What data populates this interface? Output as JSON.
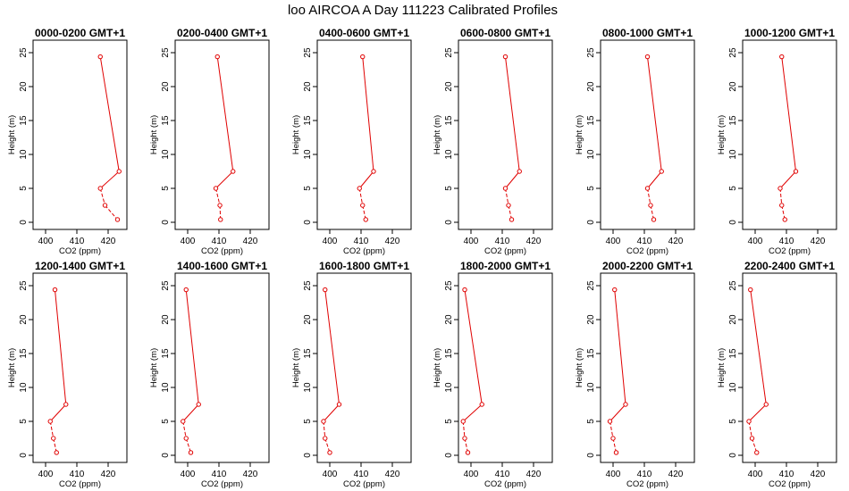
{
  "figure": {
    "title": "loo AIRCOA A  Day 111223  Calibrated Profiles"
  },
  "colors": {
    "series": "#e00000",
    "axes": "#000000",
    "background": "#ffffff"
  },
  "chart_data": [
    {
      "type": "line",
      "title": "0000-0200 GMT+1",
      "xlabel": "CO2 (ppm)",
      "ylabel": "Height (m)",
      "xlim": [
        396,
        426
      ],
      "ylim": [
        0,
        25
      ],
      "xticks": [
        400,
        410,
        420
      ],
      "yticks": [
        0,
        5,
        10,
        15,
        20,
        25
      ],
      "grid": false,
      "points": [
        {
          "x": 417.5,
          "y": 24.4
        },
        {
          "x": 423.5,
          "y": 7.5
        },
        {
          "x": 417.5,
          "y": 5.0
        },
        {
          "x": 419.0,
          "y": 2.5
        },
        {
          "x": 423.0,
          "y": 0.4
        }
      ]
    },
    {
      "type": "line",
      "title": "0200-0400 GMT+1",
      "xlabel": "CO2 (ppm)",
      "ylabel": "Height (m)",
      "xlim": [
        396,
        426
      ],
      "ylim": [
        0,
        25
      ],
      "xticks": [
        400,
        410,
        420
      ],
      "yticks": [
        0,
        5,
        10,
        15,
        20,
        25
      ],
      "grid": false,
      "points": [
        {
          "x": 409.5,
          "y": 24.4
        },
        {
          "x": 414.5,
          "y": 7.5
        },
        {
          "x": 409.0,
          "y": 5.0
        },
        {
          "x": 410.3,
          "y": 2.5
        },
        {
          "x": 410.5,
          "y": 0.4
        }
      ]
    },
    {
      "type": "line",
      "title": "0400-0600 GMT+1",
      "xlabel": "CO2 (ppm)",
      "ylabel": "Height (m)",
      "xlim": [
        396,
        426
      ],
      "ylim": [
        0,
        25
      ],
      "xticks": [
        400,
        410,
        420
      ],
      "yticks": [
        0,
        5,
        10,
        15,
        20,
        25
      ],
      "grid": false,
      "points": [
        {
          "x": 410.5,
          "y": 24.4
        },
        {
          "x": 414.0,
          "y": 7.5
        },
        {
          "x": 409.5,
          "y": 5.0
        },
        {
          "x": 410.5,
          "y": 2.5
        },
        {
          "x": 411.5,
          "y": 0.4
        }
      ]
    },
    {
      "type": "line",
      "title": "0600-0800 GMT+1",
      "xlabel": "CO2 (ppm)",
      "ylabel": "Height (m)",
      "xlim": [
        396,
        426
      ],
      "ylim": [
        0,
        25
      ],
      "xticks": [
        400,
        410,
        420
      ],
      "yticks": [
        0,
        5,
        10,
        15,
        20,
        25
      ],
      "grid": false,
      "points": [
        {
          "x": 411.0,
          "y": 24.4
        },
        {
          "x": 415.5,
          "y": 7.5
        },
        {
          "x": 411.0,
          "y": 5.0
        },
        {
          "x": 412.0,
          "y": 2.5
        },
        {
          "x": 413.0,
          "y": 0.4
        }
      ]
    },
    {
      "type": "line",
      "title": "0800-1000 GMT+1",
      "xlabel": "CO2 (ppm)",
      "ylabel": "Height (m)",
      "xlim": [
        396,
        426
      ],
      "ylim": [
        0,
        25
      ],
      "xticks": [
        400,
        410,
        420
      ],
      "yticks": [
        0,
        5,
        10,
        15,
        20,
        25
      ],
      "grid": false,
      "points": [
        {
          "x": 411.0,
          "y": 24.4
        },
        {
          "x": 415.5,
          "y": 7.5
        },
        {
          "x": 411.0,
          "y": 5.0
        },
        {
          "x": 412.0,
          "y": 2.5
        },
        {
          "x": 413.0,
          "y": 0.4
        }
      ]
    },
    {
      "type": "line",
      "title": "1000-1200 GMT+1",
      "xlabel": "CO2 (ppm)",
      "ylabel": "Height (m)",
      "xlim": [
        396,
        426
      ],
      "ylim": [
        0,
        25
      ],
      "xticks": [
        400,
        410,
        420
      ],
      "yticks": [
        0,
        5,
        10,
        15,
        20,
        25
      ],
      "grid": false,
      "points": [
        {
          "x": 408.5,
          "y": 24.4
        },
        {
          "x": 413.0,
          "y": 7.5
        },
        {
          "x": 408.0,
          "y": 5.0
        },
        {
          "x": 408.5,
          "y": 2.5
        },
        {
          "x": 409.5,
          "y": 0.4
        }
      ]
    },
    {
      "type": "line",
      "title": "1200-1400 GMT+1",
      "xlabel": "CO2 (ppm)",
      "ylabel": "Height (m)",
      "xlim": [
        396,
        426
      ],
      "ylim": [
        0,
        25
      ],
      "xticks": [
        400,
        410,
        420
      ],
      "yticks": [
        0,
        5,
        10,
        15,
        20,
        25
      ],
      "grid": false,
      "points": [
        {
          "x": 403.0,
          "y": 24.4
        },
        {
          "x": 406.5,
          "y": 7.5
        },
        {
          "x": 401.5,
          "y": 5.0
        },
        {
          "x": 402.5,
          "y": 2.5
        },
        {
          "x": 403.5,
          "y": 0.4
        }
      ]
    },
    {
      "type": "line",
      "title": "1400-1600 GMT+1",
      "xlabel": "CO2 (ppm)",
      "ylabel": "Height (m)",
      "xlim": [
        396,
        426
      ],
      "ylim": [
        0,
        25
      ],
      "xticks": [
        400,
        410,
        420
      ],
      "yticks": [
        0,
        5,
        10,
        15,
        20,
        25
      ],
      "grid": false,
      "points": [
        {
          "x": 399.5,
          "y": 24.4
        },
        {
          "x": 403.5,
          "y": 7.5
        },
        {
          "x": 398.5,
          "y": 5.0
        },
        {
          "x": 399.5,
          "y": 2.5
        },
        {
          "x": 401.0,
          "y": 0.4
        }
      ]
    },
    {
      "type": "line",
      "title": "1600-1800 GMT+1",
      "xlabel": "CO2 (ppm)",
      "ylabel": "Height (m)",
      "xlim": [
        396,
        426
      ],
      "ylim": [
        0,
        25
      ],
      "xticks": [
        400,
        410,
        420
      ],
      "yticks": [
        0,
        5,
        10,
        15,
        20,
        25
      ],
      "grid": false,
      "points": [
        {
          "x": 398.5,
          "y": 24.4
        },
        {
          "x": 403.0,
          "y": 7.5
        },
        {
          "x": 398.0,
          "y": 5.0
        },
        {
          "x": 398.5,
          "y": 2.5
        },
        {
          "x": 400.0,
          "y": 0.4
        }
      ]
    },
    {
      "type": "line",
      "title": "1800-2000 GMT+1",
      "xlabel": "CO2 (ppm)",
      "ylabel": "Height (m)",
      "xlim": [
        396,
        426
      ],
      "ylim": [
        0,
        25
      ],
      "xticks": [
        400,
        410,
        420
      ],
      "yticks": [
        0,
        5,
        10,
        15,
        20,
        25
      ],
      "grid": false,
      "points": [
        {
          "x": 398.0,
          "y": 24.4
        },
        {
          "x": 403.5,
          "y": 7.5
        },
        {
          "x": 397.5,
          "y": 5.0
        },
        {
          "x": 398.0,
          "y": 2.5
        },
        {
          "x": 399.0,
          "y": 0.4
        }
      ]
    },
    {
      "type": "line",
      "title": "2000-2200 GMT+1",
      "xlabel": "CO2 (ppm)",
      "ylabel": "Height (m)",
      "xlim": [
        396,
        426
      ],
      "ylim": [
        0,
        25
      ],
      "xticks": [
        400,
        410,
        420
      ],
      "yticks": [
        0,
        5,
        10,
        15,
        20,
        25
      ],
      "grid": false,
      "points": [
        {
          "x": 400.5,
          "y": 24.4
        },
        {
          "x": 404.0,
          "y": 7.5
        },
        {
          "x": 399.0,
          "y": 5.0
        },
        {
          "x": 400.0,
          "y": 2.5
        },
        {
          "x": 401.0,
          "y": 0.4
        }
      ]
    },
    {
      "type": "line",
      "title": "2200-2400 GMT+1",
      "xlabel": "CO2 (ppm)",
      "ylabel": "Height (m)",
      "xlim": [
        396,
        426
      ],
      "ylim": [
        0,
        25
      ],
      "xticks": [
        400,
        410,
        420
      ],
      "yticks": [
        0,
        5,
        10,
        15,
        20,
        25
      ],
      "grid": false,
      "points": [
        {
          "x": 398.5,
          "y": 24.4
        },
        {
          "x": 403.5,
          "y": 7.5
        },
        {
          "x": 398.0,
          "y": 5.0
        },
        {
          "x": 399.0,
          "y": 2.5
        },
        {
          "x": 400.5,
          "y": 0.4
        }
      ]
    }
  ]
}
